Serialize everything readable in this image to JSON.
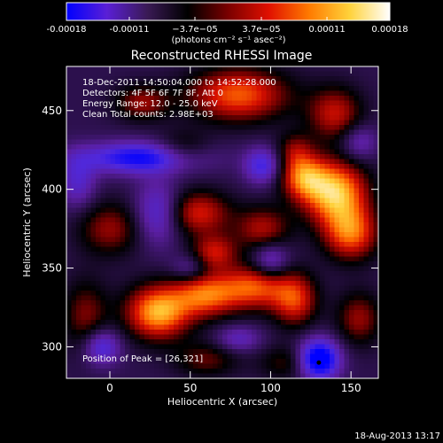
{
  "colorbar": {
    "ticks": [
      "-0.00018",
      "-0.00011",
      "−3.7e−05",
      "3.7e−05",
      "0.00011",
      "0.00018"
    ],
    "tick_values": [
      -0.00018,
      -0.00011,
      -3.7e-05,
      3.7e-05,
      0.00011,
      0.00018
    ],
    "range": [
      -0.00018,
      0.00018
    ],
    "unit_label": "(photons cm⁻² s⁻¹ asec⁻²)",
    "colors": [
      "#0000ff",
      "#5a1fd6",
      "#3a1a55",
      "#000000",
      "#7a0000",
      "#e01000",
      "#ff7a00",
      "#ffd23a",
      "#ffffff"
    ]
  },
  "chart_data": {
    "type": "heatmap",
    "title": "Reconstructed RHESSI Image",
    "xlabel": "Heliocentric X (arcsec)",
    "ylabel": "Heliocentric Y (arcsec)",
    "xlim": [
      -27,
      167
    ],
    "ylim": [
      280,
      478
    ],
    "xticks": [
      0,
      50,
      100,
      150
    ],
    "yticks": [
      300,
      350,
      400,
      450
    ],
    "annotations": [
      "18-Dec-2011 14:50:04.000 to 14:52:28.000",
      "Detectors: 4F 5F 6F 7F 8F, Att 0",
      "Energy Range: 12.0 - 25.0 keV",
      "Clean    Total counts: 2.98E+03"
    ],
    "peak_label": "Position of Peak = [26,321]",
    "blobs": [
      {
        "x": 140,
        "y": 398,
        "sx": 14,
        "sy": 14,
        "v": 1.0
      },
      {
        "x": 120,
        "y": 408,
        "sx": 10,
        "sy": 10,
        "v": 0.7
      },
      {
        "x": 150,
        "y": 372,
        "sx": 12,
        "sy": 12,
        "v": 0.75
      },
      {
        "x": 30,
        "y": 322,
        "sx": 14,
        "sy": 12,
        "v": 0.95
      },
      {
        "x": 60,
        "y": 333,
        "sx": 14,
        "sy": 10,
        "v": 0.75
      },
      {
        "x": 90,
        "y": 338,
        "sx": 14,
        "sy": 10,
        "v": 0.7
      },
      {
        "x": 115,
        "y": 330,
        "sx": 10,
        "sy": 12,
        "v": 0.65
      },
      {
        "x": 80,
        "y": 460,
        "sx": 22,
        "sy": 12,
        "v": 0.75
      },
      {
        "x": 20,
        "y": 455,
        "sx": 12,
        "sy": 8,
        "v": 0.45
      },
      {
        "x": 55,
        "y": 385,
        "sx": 14,
        "sy": 10,
        "v": 0.6
      },
      {
        "x": 65,
        "y": 360,
        "sx": 10,
        "sy": 8,
        "v": 0.55
      },
      {
        "x": 95,
        "y": 375,
        "sx": 12,
        "sy": 10,
        "v": 0.5
      },
      {
        "x": 140,
        "y": 448,
        "sx": 12,
        "sy": 12,
        "v": 0.55
      },
      {
        "x": 0,
        "y": 375,
        "sx": 14,
        "sy": 12,
        "v": 0.45
      },
      {
        "x": -15,
        "y": 320,
        "sx": 10,
        "sy": 16,
        "v": 0.4
      },
      {
        "x": 155,
        "y": 318,
        "sx": 10,
        "sy": 12,
        "v": 0.45
      },
      {
        "x": 60,
        "y": 292,
        "sx": 14,
        "sy": 8,
        "v": 0.35
      },
      {
        "x": 110,
        "y": 290,
        "sx": 12,
        "sy": 8,
        "v": 0.3
      },
      {
        "x": 45,
        "y": 425,
        "sx": 12,
        "sy": 8,
        "v": 0.35
      },
      {
        "x": 115,
        "y": 425,
        "sx": 8,
        "sy": 8,
        "v": 0.35
      },
      {
        "x": 20,
        "y": 420,
        "sx": 26,
        "sy": 7,
        "v": -0.75
      },
      {
        "x": 95,
        "y": 415,
        "sx": 8,
        "sy": 8,
        "v": -0.55
      },
      {
        "x": 130,
        "y": 292,
        "sx": 9,
        "sy": 9,
        "v": -1.0
      },
      {
        "x": -5,
        "y": 300,
        "sx": 8,
        "sy": 8,
        "v": -0.55
      },
      {
        "x": 30,
        "y": 385,
        "sx": 10,
        "sy": 14,
        "v": -0.5
      },
      {
        "x": 100,
        "y": 355,
        "sx": 8,
        "sy": 8,
        "v": -0.45
      },
      {
        "x": -20,
        "y": 405,
        "sx": 8,
        "sy": 12,
        "v": -0.4
      },
      {
        "x": 155,
        "y": 430,
        "sx": 8,
        "sy": 8,
        "v": -0.35
      },
      {
        "x": 80,
        "y": 305,
        "sx": 10,
        "sy": 6,
        "v": -0.35
      },
      {
        "x": 50,
        "y": 350,
        "sx": 8,
        "sy": 6,
        "v": -0.3
      }
    ],
    "peak_position": [
      26,
      321
    ]
  },
  "footer": {
    "timestamp": "18-Aug-2013 13:17"
  }
}
